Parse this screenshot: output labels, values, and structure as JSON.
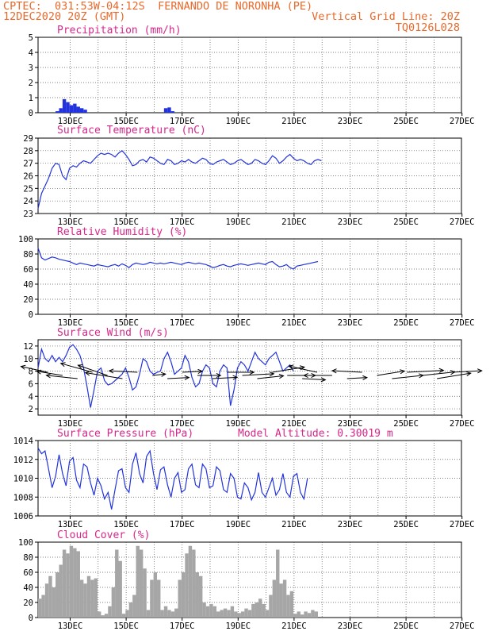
{
  "header": {
    "line1_left": "CPTEC:  031:53W-04:12S  FERNANDO DE NORONHA (PE)",
    "line2_left": "12DEC2020 20Z (GMT)",
    "line2_right": "Vertical Grid Line: 20Z",
    "line3_right": "TQ0126L028"
  },
  "colors": {
    "header": "#e8692a",
    "title": "#d6278a",
    "series": "#2233dd",
    "cloud": "#a6a6a6",
    "wind_arrow": "#000000"
  },
  "x_axis": {
    "ticks": [
      "13DEC",
      "15DEC",
      "17DEC",
      "19DEC",
      "21DEC",
      "23DEC",
      "25DEC",
      "27DEC"
    ]
  },
  "chart_data": [
    {
      "id": "precip",
      "type": "bar",
      "title": "Precipitation (mm/h)",
      "ylim": [
        0,
        5
      ],
      "yticks": [
        "0",
        "1",
        "2",
        "3",
        "4",
        "5"
      ],
      "x_start": "12DEC 20Z",
      "x_step_hours": 3,
      "values": [
        0,
        0,
        0,
        0,
        0,
        0.1,
        0.3,
        0.9,
        0.7,
        0.5,
        0.6,
        0.4,
        0.3,
        0.2,
        0,
        0,
        0,
        0,
        0,
        0,
        0,
        0,
        0,
        0,
        0,
        0,
        0,
        0,
        0,
        0,
        0,
        0,
        0,
        0,
        0,
        0,
        0.3,
        0.35,
        0.1,
        0,
        0,
        0,
        0,
        0,
        0,
        0,
        0,
        0,
        0,
        0,
        0,
        0,
        0,
        0,
        0,
        0,
        0,
        0,
        0,
        0,
        0,
        0,
        0,
        0,
        0,
        0,
        0,
        0,
        0,
        0,
        0,
        0,
        0,
        0,
        0,
        0,
        0,
        0,
        0,
        0,
        0,
        0,
        0,
        0,
        0,
        0,
        0,
        0,
        0,
        0,
        0,
        0,
        0,
        0,
        0,
        0,
        0,
        0,
        0,
        0,
        0,
        0,
        0,
        0,
        0,
        0,
        0,
        0,
        0,
        0,
        0,
        0,
        0,
        0,
        0,
        0
      ]
    },
    {
      "id": "temp",
      "type": "line",
      "title": "Surface Temperature (nC)",
      "ylim": [
        23,
        29
      ],
      "yticks": [
        "23",
        "24",
        "25",
        "26",
        "27",
        "28",
        "29"
      ],
      "x_start": "12DEC 20Z",
      "x_step_hours": 3,
      "values": [
        23.4,
        24.6,
        25.2,
        25.8,
        26.6,
        27.0,
        26.9,
        26.0,
        25.7,
        26.6,
        26.8,
        26.7,
        27.0,
        27.2,
        27.1,
        27.0,
        27.3,
        27.6,
        27.8,
        27.7,
        27.8,
        27.7,
        27.5,
        27.8,
        28.0,
        27.7,
        27.3,
        26.8,
        26.9,
        27.2,
        27.3,
        27.1,
        27.5,
        27.4,
        27.2,
        27.0,
        26.9,
        27.3,
        27.2,
        26.9,
        27.0,
        27.2,
        27.1,
        27.3,
        27.1,
        27.0,
        27.2,
        27.4,
        27.3,
        27.0,
        26.9,
        27.1,
        27.2,
        27.3,
        27.1,
        26.9,
        27.0,
        27.2,
        27.3,
        27.1,
        26.9,
        27.0,
        27.3,
        27.2,
        27.0,
        26.9,
        27.2,
        27.6,
        27.4,
        27.0,
        27.2,
        27.5,
        27.7,
        27.4,
        27.2,
        27.3,
        27.2,
        27.0,
        26.9,
        27.2,
        27.3,
        27.2
      ]
    },
    {
      "id": "rh",
      "type": "line",
      "title": "Relative Humidity (%)",
      "ylim": [
        0,
        100
      ],
      "yticks": [
        "0",
        "20",
        "40",
        "60",
        "80",
        "100"
      ],
      "x_start": "12DEC 20Z",
      "x_step_hours": 3,
      "values": [
        88,
        75,
        72,
        74,
        76,
        75,
        73,
        72,
        71,
        70,
        68,
        66,
        68,
        67,
        66,
        65,
        64,
        66,
        65,
        64,
        63,
        65,
        66,
        64,
        67,
        65,
        62,
        66,
        68,
        67,
        66,
        67,
        69,
        68,
        67,
        68,
        67,
        68,
        69,
        68,
        67,
        66,
        68,
        69,
        68,
        67,
        68,
        67,
        66,
        64,
        62,
        63,
        65,
        66,
        64,
        63,
        65,
        66,
        67,
        66,
        65,
        66,
        67,
        68,
        67,
        66,
        69,
        70,
        66,
        63,
        64,
        66,
        62,
        60,
        64,
        65,
        66,
        67,
        68,
        69,
        70
      ]
    },
    {
      "id": "wind",
      "type": "line",
      "title": "Surface Wind (m/s)",
      "ylim": [
        1,
        13
      ],
      "yticks": [
        "2",
        "4",
        "6",
        "8",
        "10",
        "12"
      ],
      "x_start": "12DEC 20Z",
      "x_step_hours": 3,
      "values": [
        8.5,
        11.5,
        10.0,
        9.5,
        10.5,
        9.5,
        10.2,
        9.5,
        10.5,
        11.8,
        12.2,
        11.5,
        10.5,
        8.5,
        5.5,
        2.2,
        5.0,
        8.0,
        8.5,
        6.5,
        5.8,
        6.0,
        6.5,
        7.0,
        7.5,
        8.5,
        7.0,
        5.0,
        5.5,
        7.5,
        10.0,
        9.5,
        8.0,
        7.5,
        7.8,
        8.0,
        10.0,
        11.0,
        9.5,
        7.5,
        8.0,
        8.5,
        10.5,
        9.5,
        7.0,
        5.5,
        6.0,
        8.0,
        9.0,
        8.5,
        6.0,
        5.5,
        8.0,
        9.0,
        8.5,
        2.5,
        5.0,
        8.5,
        9.5,
        9.0,
        8.0,
        9.5,
        11.0,
        10.0,
        9.5,
        9.0,
        10.0,
        10.5,
        11.0,
        9.5,
        8.0,
        8.5,
        9.0,
        8.0
      ]
    },
    {
      "id": "pres",
      "type": "line",
      "title": "Surface Pressure (hPa)",
      "annotation": "Model Altitude: 0.30019 m",
      "ylim": [
        1006,
        1014
      ],
      "yticks": [
        "1006",
        "1008",
        "1010",
        "1012",
        "1014"
      ],
      "x_start": "12DEC 20Z",
      "x_step_hours": 3,
      "values": [
        1013.2,
        1012.6,
        1012.9,
        1011.0,
        1009.0,
        1010.2,
        1012.5,
        1010.5,
        1009.2,
        1011.8,
        1012.2,
        1009.8,
        1009.0,
        1011.5,
        1011.2,
        1009.5,
        1008.2,
        1010.0,
        1009.2,
        1007.8,
        1008.5,
        1006.7,
        1008.8,
        1010.8,
        1011.0,
        1009.0,
        1008.5,
        1011.5,
        1012.7,
        1010.5,
        1009.5,
        1012.3,
        1012.9,
        1010.5,
        1008.8,
        1010.9,
        1011.2,
        1009.3,
        1008.0,
        1010.0,
        1010.6,
        1008.5,
        1008.8,
        1011.0,
        1011.5,
        1009.3,
        1009.0,
        1011.5,
        1011.0,
        1009.0,
        1009.2,
        1011.2,
        1010.8,
        1008.8,
        1008.5,
        1010.5,
        1010.0,
        1008.0,
        1007.8,
        1009.5,
        1009.0,
        1007.7,
        1008.5,
        1010.6,
        1008.5,
        1008.0,
        1009.0,
        1010.0,
        1008.2,
        1008.8,
        1010.5,
        1008.5,
        1008.0,
        1010.2,
        1010.5,
        1008.5,
        1007.8,
        1010.0
      ]
    },
    {
      "id": "cloud",
      "type": "bar",
      "title": "Cloud Cover (%)",
      "ylim": [
        0,
        100
      ],
      "yticks": [
        "0",
        "20",
        "40",
        "60",
        "80",
        "100"
      ],
      "x_start": "12DEC 20Z",
      "x_step_hours": 3,
      "values": [
        25,
        30,
        45,
        55,
        40,
        60,
        70,
        90,
        85,
        95,
        92,
        88,
        50,
        45,
        55,
        50,
        52,
        8,
        3,
        5,
        15,
        40,
        90,
        75,
        5,
        10,
        20,
        30,
        95,
        90,
        65,
        10,
        50,
        60,
        50,
        10,
        15,
        10,
        8,
        12,
        50,
        60,
        85,
        95,
        90,
        60,
        55,
        20,
        15,
        18,
        15,
        8,
        10,
        12,
        10,
        15,
        8,
        6,
        8,
        12,
        10,
        18,
        20,
        25,
        18,
        10,
        30,
        50,
        90,
        45,
        50,
        30,
        35,
        5,
        8,
        4,
        8,
        6,
        10,
        8
      ]
    }
  ],
  "wind_vectors": {
    "note": "",
    "vectors": [
      {
        "speed": 8.5,
        "dir_deg": 160
      },
      {
        "speed": 8.0,
        "dir_deg": 165
      },
      {
        "speed": 9.5,
        "dir_deg": 170
      },
      {
        "speed": 10.5,
        "dir_deg": 155
      },
      {
        "speed": 10.2,
        "dir_deg": 150
      },
      {
        "speed": 11.5,
        "dir_deg": 165
      },
      {
        "speed": 8.5,
        "dir_deg": 175
      },
      {
        "speed": 4.0,
        "dir_deg": 10
      },
      {
        "speed": 6.5,
        "dir_deg": 5
      },
      {
        "speed": 6.0,
        "dir_deg": 5
      },
      {
        "speed": 7.0,
        "dir_deg": 0
      },
      {
        "speed": 7.5,
        "dir_deg": 5
      },
      {
        "speed": 8.0,
        "dir_deg": 0
      },
      {
        "speed": 9.5,
        "dir_deg": 5
      },
      {
        "speed": 8.0,
        "dir_deg": 10
      },
      {
        "speed": 10.0,
        "dir_deg": 15
      },
      {
        "speed": 8.5,
        "dir_deg": 0
      },
      {
        "speed": 7.0,
        "dir_deg": 355
      },
      {
        "speed": 9.0,
        "dir_deg": 160
      },
      {
        "speed": 8.5,
        "dir_deg": 180
      },
      {
        "speed": 6.0,
        "dir_deg": 5
      },
      {
        "speed": 9.0,
        "dir_deg": 175
      },
      {
        "speed": 8.5,
        "dir_deg": 15
      },
      {
        "speed": 9.5,
        "dir_deg": 10
      },
      {
        "speed": 11.0,
        "dir_deg": 5
      },
      {
        "speed": 10.0,
        "dir_deg": 10
      },
      {
        "speed": 10.5,
        "dir_deg": 15
      },
      {
        "speed": 9.0,
        "dir_deg": 5
      }
    ]
  }
}
